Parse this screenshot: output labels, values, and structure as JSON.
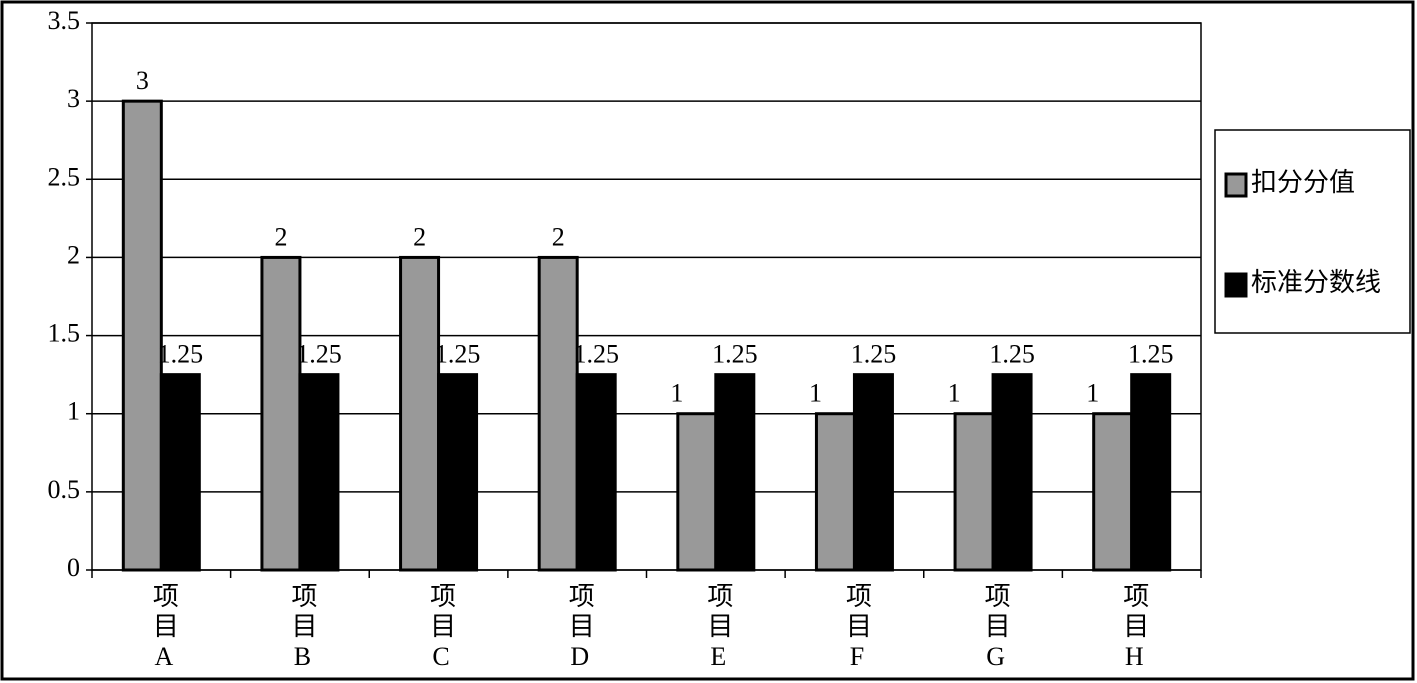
{
  "chart_data": {
    "type": "bar",
    "categories": [
      "项目A",
      "项目B",
      "项目C",
      "项目D",
      "项目E",
      "项目F",
      "项目G",
      "项目H"
    ],
    "series": [
      {
        "name": "扣分分值",
        "color": "#999999",
        "values": [
          3,
          2,
          2,
          2,
          1,
          1,
          1,
          1
        ]
      },
      {
        "name": "标准分数线",
        "color": "#000000",
        "values": [
          1.25,
          1.25,
          1.25,
          1.25,
          1.25,
          1.25,
          1.25,
          1.25
        ]
      }
    ],
    "ylim": [
      0,
      3.5
    ],
    "yticks": [
      0,
      0.5,
      1,
      1.5,
      2,
      2.5,
      3,
      3.5
    ],
    "grid": true,
    "legend": "right"
  }
}
